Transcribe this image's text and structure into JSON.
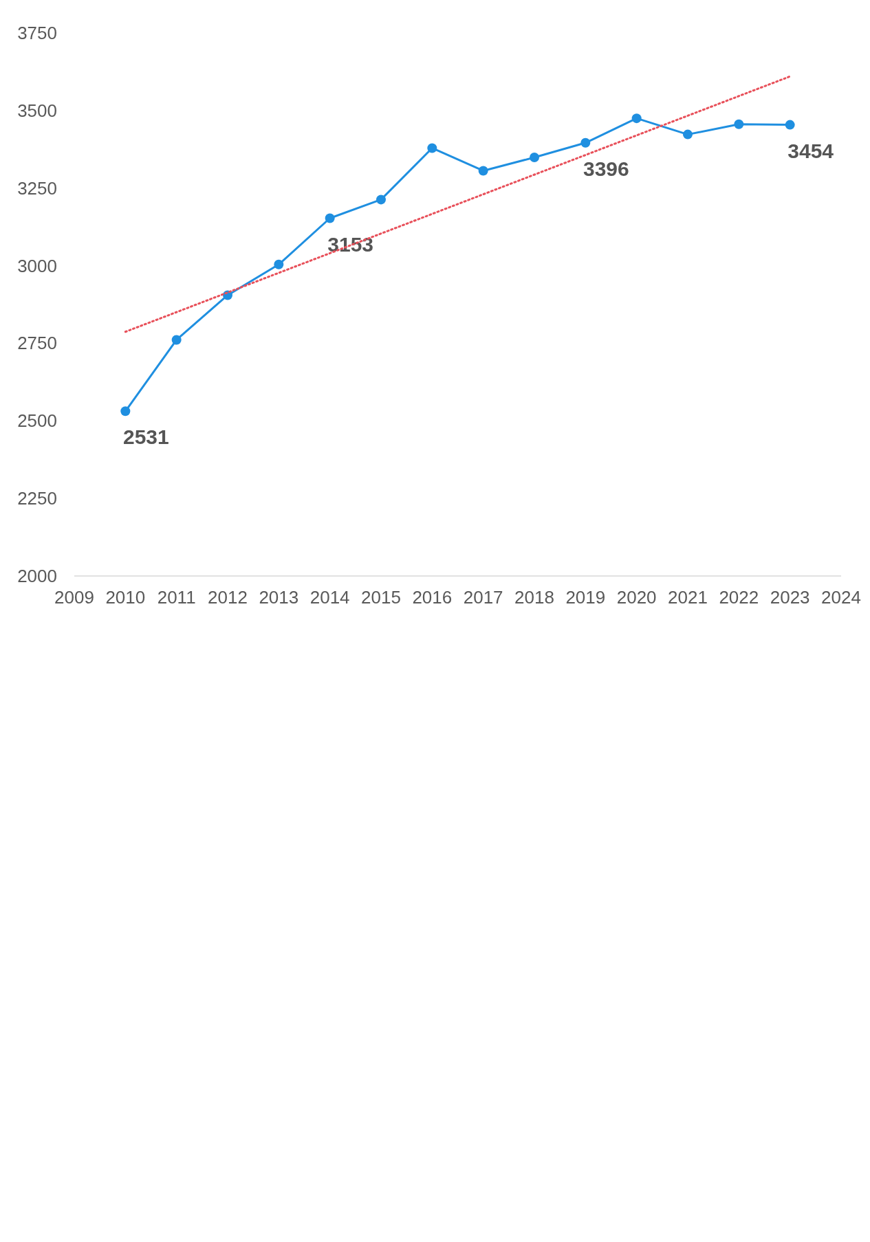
{
  "chart_data": {
    "type": "line",
    "x": [
      2010,
      2011,
      2012,
      2013,
      2014,
      2015,
      2016,
      2017,
      2018,
      2019,
      2020,
      2021,
      2022,
      2023
    ],
    "xlim": [
      2009,
      2024
    ],
    "xticks": [
      2009,
      2010,
      2011,
      2012,
      2013,
      2014,
      2015,
      2016,
      2017,
      2018,
      2019,
      2020,
      2021,
      2022,
      2023,
      2024
    ],
    "ylim": [
      2000,
      3750
    ],
    "yticks": [
      2000,
      2250,
      2500,
      2750,
      3000,
      3250,
      3500,
      3750
    ],
    "marker": "circle",
    "grid": false,
    "series": [
      {
        "color": "#1f8fe0",
        "values": [
          2531,
          2761,
          2905,
          3004,
          3153,
          3213,
          3379,
          3306,
          3349,
          3396,
          3475,
          3423,
          3456,
          3454
        ],
        "value_labels": [
          "2531",
          null,
          null,
          null,
          "3153",
          null,
          null,
          null,
          null,
          "3396",
          null,
          null,
          null,
          "3454"
        ]
      },
      {
        "type": "line",
        "color": "#e8505a",
        "line_style": "dotted",
        "marker": "none",
        "x": [
          2010,
          2023
        ],
        "values": [
          2787,
          3610
        ]
      }
    ]
  }
}
